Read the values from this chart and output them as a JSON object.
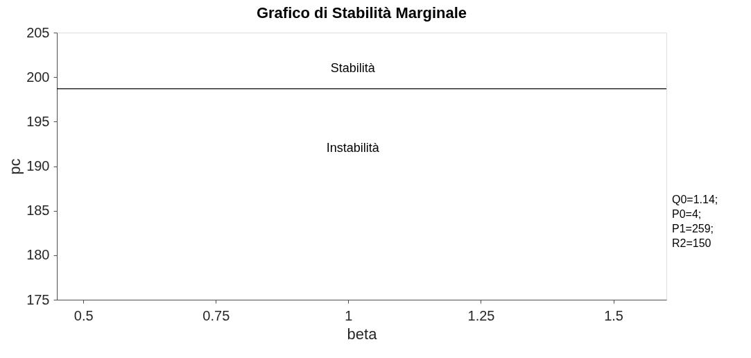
{
  "chart_data": {
    "type": "line",
    "title": "Grafico di Stabilità Marginale",
    "xlabel": "beta",
    "ylabel": "pc",
    "x": [
      0.45,
      1.6
    ],
    "series": [
      {
        "color": "#000000",
        "values": [
          198.7,
          198.7
        ]
      }
    ],
    "xlim": [
      0.45,
      1.6
    ],
    "xticks": [
      0.5,
      0.75,
      1,
      1.25,
      1.5
    ],
    "ylim": [
      175,
      205
    ],
    "yticks": [
      175,
      180,
      185,
      190,
      195,
      200,
      205
    ],
    "annotations": [
      "Stabilità",
      "Instabilità",
      "Q0=1.14;\nP0=4;\nP1=259;\nR2=150"
    ],
    "grid": false,
    "marker": "none",
    "line_style": "solid"
  }
}
